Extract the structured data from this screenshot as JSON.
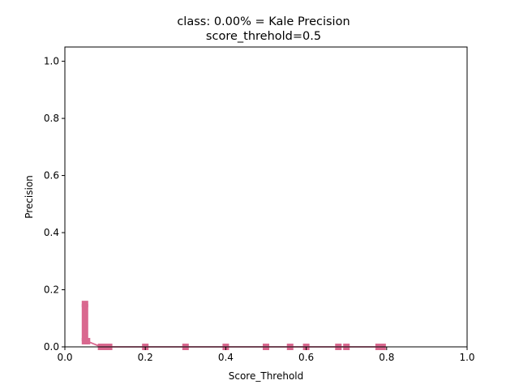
{
  "chart_data": {
    "type": "line",
    "title": "class: 0.00% = Kale Precision",
    "subtitle": "score_threhold=0.5",
    "xlabel": "Score_Threhold",
    "ylabel": "Precision",
    "xlim": [
      0.0,
      1.0
    ],
    "ylim": [
      0.0,
      1.05
    ],
    "x_ticks": [
      "0.0",
      "0.2",
      "0.4",
      "0.6",
      "0.8",
      "1.0"
    ],
    "y_ticks": [
      "0.0",
      "0.2",
      "0.4",
      "0.6",
      "0.8",
      "1.0"
    ],
    "grid": false,
    "color": "#d9688f",
    "series": [
      {
        "x": [
          0.05,
          0.05,
          0.055,
          0.09,
          0.1,
          0.11,
          0.2,
          0.3,
          0.4,
          0.5,
          0.56,
          0.6,
          0.68,
          0.7,
          0.78,
          0.79
        ],
        "y": [
          0.15,
          0.02,
          0.02,
          0.0,
          0.0,
          0.0,
          0.0,
          0.0,
          0.0,
          0.0,
          0.0,
          0.0,
          0.0,
          0.0,
          0.0,
          0.0
        ]
      }
    ]
  }
}
